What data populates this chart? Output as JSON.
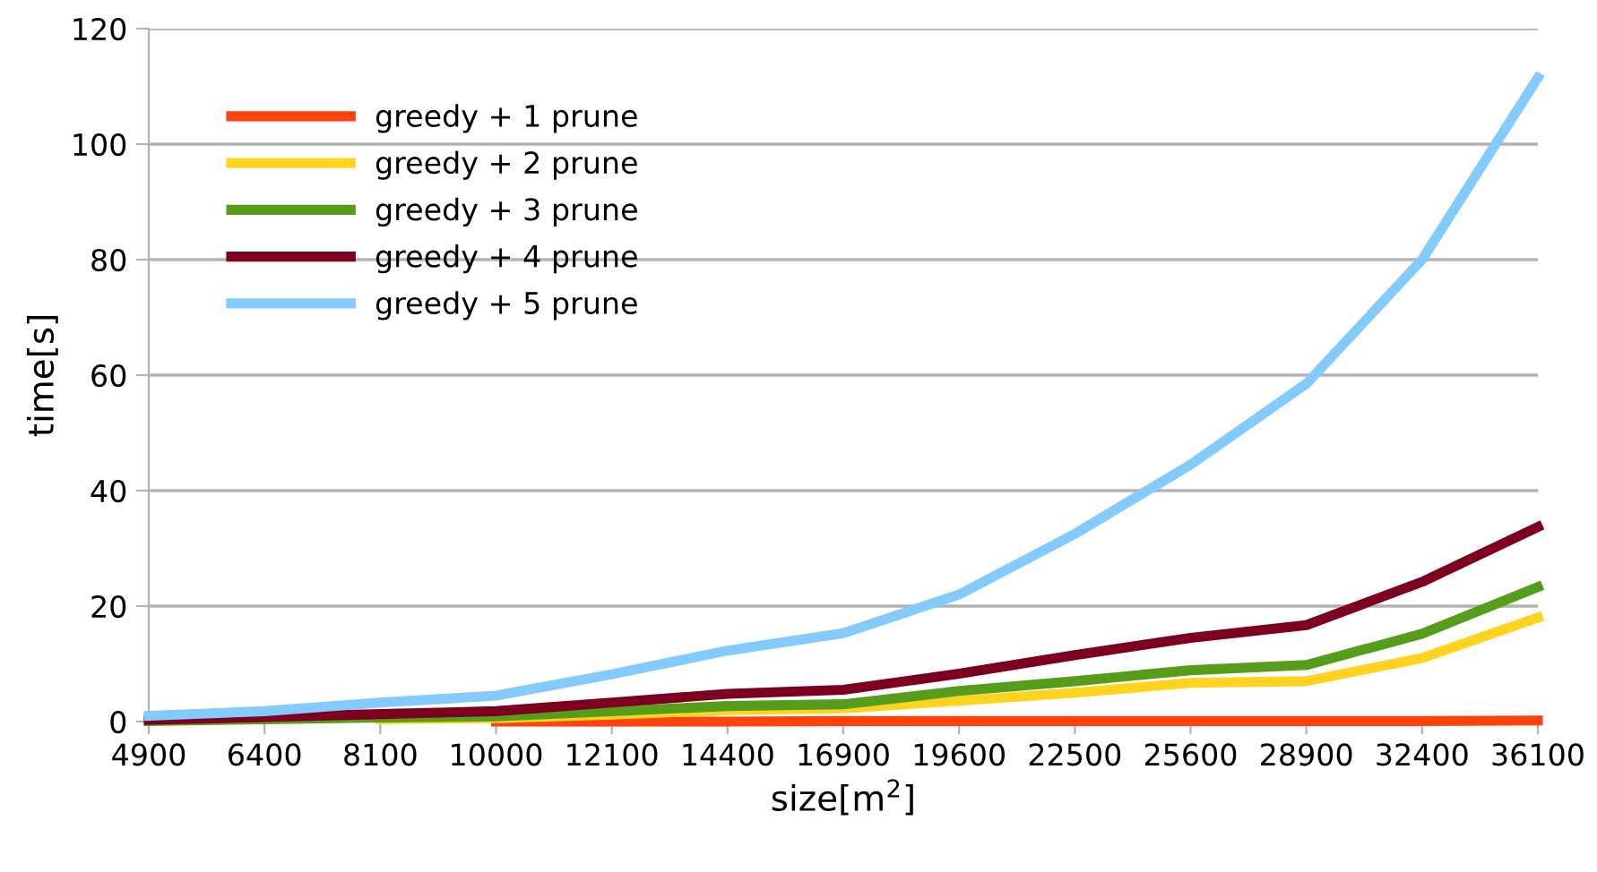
{
  "chart_data": {
    "type": "line",
    "xlabel": "size[m$^{2}$]",
    "ylabel": "time[s]",
    "categories": [
      "4900",
      "6400",
      "8100",
      "10000",
      "12100",
      "14400",
      "16900",
      "19600",
      "22500",
      "25600",
      "28900",
      "32400",
      "36100"
    ],
    "series": [
      {
        "name": "greedy + 1 prune",
        "color": "#ff420e",
        "values": [
          null,
          null,
          null,
          0,
          0,
          0,
          0.1,
          0.1,
          0.1,
          0.1,
          0.1,
          0.1,
          0.2
        ]
      },
      {
        "name": "greedy + 2 prune",
        "color": "#ffd320",
        "values": [
          null,
          null,
          0.4,
          0.6,
          1.2,
          2.0,
          2.3,
          3.6,
          5,
          6.7,
          7,
          11,
          18
        ]
      },
      {
        "name": "greedy + 3 prune",
        "color": "#579d1c",
        "values": [
          0.1,
          0.4,
          0.7,
          0.9,
          1.8,
          2.7,
          3.0,
          5.3,
          7,
          8.9,
          9.8,
          15.2,
          23.3
        ]
      },
      {
        "name": "greedy + 4 prune",
        "color": "#7e0021",
        "values": [
          0.3,
          0.8,
          1.3,
          1.8,
          3.3,
          4.8,
          5.5,
          8.3,
          11.5,
          14.5,
          16.7,
          24.2,
          33.7
        ]
      },
      {
        "name": "greedy + 5 prune",
        "color": "#83caff",
        "values": [
          1,
          1.8,
          3.3,
          4.5,
          8.2,
          12.3,
          15.3,
          22,
          32.5,
          44.5,
          58.5,
          80,
          111.5
        ]
      }
    ],
    "ylim": [
      0,
      120
    ],
    "yticks": [
      0,
      20,
      40,
      60,
      80,
      100,
      120
    ],
    "grid": "y",
    "legend": "top left",
    "marker": "none",
    "line_style": "solid"
  }
}
